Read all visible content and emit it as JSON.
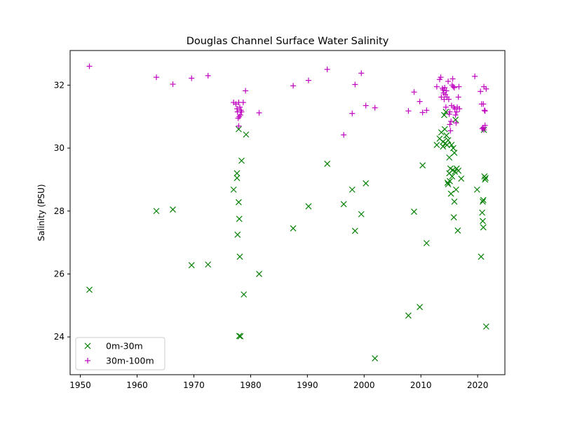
{
  "chart_data": {
    "type": "scatter",
    "title": "Douglas Channel Surface Water Salinity",
    "xlabel": "",
    "ylabel": "Salinity (PSU)",
    "xlim": [
      1948.2,
      2024.8
    ],
    "ylim": [
      22.8,
      33.1
    ],
    "xticks": [
      1950,
      1960,
      1970,
      1980,
      1990,
      2000,
      2010,
      2020
    ],
    "yticks": [
      24,
      26,
      28,
      30,
      32
    ],
    "grid": false,
    "legend_position": "lower-left",
    "series": [
      {
        "name": "0m-30m",
        "marker": "x",
        "color": "#008000",
        "points": [
          [
            1951.6,
            25.5
          ],
          [
            1963.4,
            28.0
          ],
          [
            1966.3,
            28.05
          ],
          [
            1969.6,
            26.28
          ],
          [
            1972.5,
            26.3
          ],
          [
            1977.0,
            28.68
          ],
          [
            1977.6,
            29.2
          ],
          [
            1977.6,
            29.05
          ],
          [
            1977.7,
            27.25
          ],
          [
            1977.9,
            28.28
          ],
          [
            1978.0,
            27.75
          ],
          [
            1978.1,
            26.55
          ],
          [
            1978.0,
            24.03
          ],
          [
            1978.2,
            24.02
          ],
          [
            1977.9,
            30.6
          ],
          [
            1978.4,
            29.6
          ],
          [
            1978.8,
            25.35
          ],
          [
            1979.2,
            30.43
          ],
          [
            1981.5,
            26.0
          ],
          [
            1987.5,
            27.45
          ],
          [
            1990.2,
            28.15
          ],
          [
            1993.5,
            29.5
          ],
          [
            1996.4,
            28.22
          ],
          [
            1997.9,
            28.68
          ],
          [
            1998.4,
            27.37
          ],
          [
            1999.5,
            27.9
          ],
          [
            2000.3,
            28.88
          ],
          [
            2001.9,
            23.32
          ],
          [
            2007.8,
            24.68
          ],
          [
            2008.8,
            27.98
          ],
          [
            2009.8,
            24.95
          ],
          [
            2010.3,
            29.45
          ],
          [
            2011.0,
            26.98
          ],
          [
            2012.8,
            30.1
          ],
          [
            2013.3,
            30.3
          ],
          [
            2013.6,
            30.5
          ],
          [
            2013.9,
            30.2
          ],
          [
            2013.9,
            30.05
          ],
          [
            2014.1,
            31.05
          ],
          [
            2014.2,
            30.6
          ],
          [
            2014.3,
            30.15
          ],
          [
            2014.4,
            31.15
          ],
          [
            2014.5,
            30.4
          ],
          [
            2014.6,
            30.1
          ],
          [
            2014.7,
            28.9
          ],
          [
            2014.8,
            28.85
          ],
          [
            2014.8,
            30.25
          ],
          [
            2015.0,
            29.7
          ],
          [
            2015.0,
            29.2
          ],
          [
            2015.1,
            28.95
          ],
          [
            2015.2,
            29.35
          ],
          [
            2015.3,
            28.55
          ],
          [
            2015.4,
            30.1
          ],
          [
            2015.5,
            29.1
          ],
          [
            2015.6,
            29.3
          ],
          [
            2015.7,
            30.0
          ],
          [
            2015.8,
            27.8
          ],
          [
            2015.9,
            28.3
          ],
          [
            2015.9,
            29.85
          ],
          [
            2016.0,
            29.25
          ],
          [
            2016.1,
            30.9
          ],
          [
            2016.2,
            28.68
          ],
          [
            2016.3,
            29.35
          ],
          [
            2016.5,
            27.38
          ],
          [
            2016.6,
            29.28
          ],
          [
            2017.1,
            29.03
          ],
          [
            2019.9,
            28.68
          ],
          [
            2020.6,
            26.55
          ],
          [
            2020.8,
            27.95
          ],
          [
            2020.9,
            28.3
          ],
          [
            2020.9,
            27.68
          ],
          [
            2021.0,
            28.35
          ],
          [
            2021.0,
            27.48
          ],
          [
            2021.1,
            30.58
          ],
          [
            2021.2,
            29.1
          ],
          [
            2021.3,
            29.0
          ],
          [
            2021.4,
            29.05
          ],
          [
            2021.5,
            24.33
          ]
        ]
      },
      {
        "name": "30m-100m",
        "marker": "+",
        "color": "#bf00bf",
        "points": [
          [
            1951.6,
            32.6
          ],
          [
            1963.4,
            32.25
          ],
          [
            1966.3,
            32.03
          ],
          [
            1969.6,
            32.22
          ],
          [
            1972.5,
            32.3
          ],
          [
            1977.0,
            31.45
          ],
          [
            1977.4,
            31.4
          ],
          [
            1977.6,
            31.25
          ],
          [
            1977.7,
            31.15
          ],
          [
            1977.8,
            30.95
          ],
          [
            1977.9,
            31.45
          ],
          [
            1977.9,
            30.7
          ],
          [
            1978.0,
            31.0
          ],
          [
            1978.1,
            31.3
          ],
          [
            1978.2,
            31.05
          ],
          [
            1978.3,
            31.2
          ],
          [
            1978.4,
            31.15
          ],
          [
            1978.7,
            31.45
          ],
          [
            1979.1,
            31.82
          ],
          [
            1981.5,
            31.12
          ],
          [
            1987.5,
            31.98
          ],
          [
            1990.2,
            32.15
          ],
          [
            1993.5,
            32.5
          ],
          [
            1996.4,
            30.42
          ],
          [
            1997.9,
            31.1
          ],
          [
            1998.4,
            32.02
          ],
          [
            1999.5,
            32.38
          ],
          [
            2000.3,
            31.35
          ],
          [
            2001.9,
            31.28
          ],
          [
            2007.8,
            31.18
          ],
          [
            2008.8,
            31.78
          ],
          [
            2009.8,
            31.48
          ],
          [
            2010.3,
            31.13
          ],
          [
            2011.0,
            31.2
          ],
          [
            2012.8,
            31.95
          ],
          [
            2013.3,
            32.18
          ],
          [
            2013.5,
            32.25
          ],
          [
            2013.6,
            31.62
          ],
          [
            2013.8,
            31.9
          ],
          [
            2013.9,
            31.85
          ],
          [
            2014.0,
            31.75
          ],
          [
            2014.1,
            31.55
          ],
          [
            2014.2,
            31.92
          ],
          [
            2014.3,
            31.7
          ],
          [
            2014.4,
            31.3
          ],
          [
            2014.5,
            31.82
          ],
          [
            2014.6,
            31.62
          ],
          [
            2014.8,
            32.12
          ],
          [
            2014.9,
            31.55
          ],
          [
            2015.0,
            31.08
          ],
          [
            2015.1,
            30.75
          ],
          [
            2015.1,
            31.15
          ],
          [
            2015.2,
            30.55
          ],
          [
            2015.3,
            30.85
          ],
          [
            2015.4,
            31.35
          ],
          [
            2015.5,
            32.0
          ],
          [
            2015.6,
            32.2
          ],
          [
            2015.7,
            31.95
          ],
          [
            2015.8,
            31.3
          ],
          [
            2015.9,
            31.92
          ],
          [
            2016.0,
            31.25
          ],
          [
            2016.1,
            31.05
          ],
          [
            2016.2,
            30.8
          ],
          [
            2016.3,
            31.15
          ],
          [
            2016.4,
            31.3
          ],
          [
            2016.6,
            31.62
          ],
          [
            2016.7,
            31.95
          ],
          [
            2016.8,
            31.25
          ],
          [
            2019.5,
            32.28
          ],
          [
            2020.5,
            31.8
          ],
          [
            2020.7,
            31.4
          ],
          [
            2020.8,
            30.62
          ],
          [
            2021.0,
            31.4
          ],
          [
            2021.0,
            30.65
          ],
          [
            2021.1,
            31.95
          ],
          [
            2021.1,
            30.58
          ],
          [
            2021.2,
            31.2
          ],
          [
            2021.3,
            31.18
          ],
          [
            2021.3,
            30.72
          ],
          [
            2021.5,
            31.88
          ]
        ]
      }
    ]
  }
}
